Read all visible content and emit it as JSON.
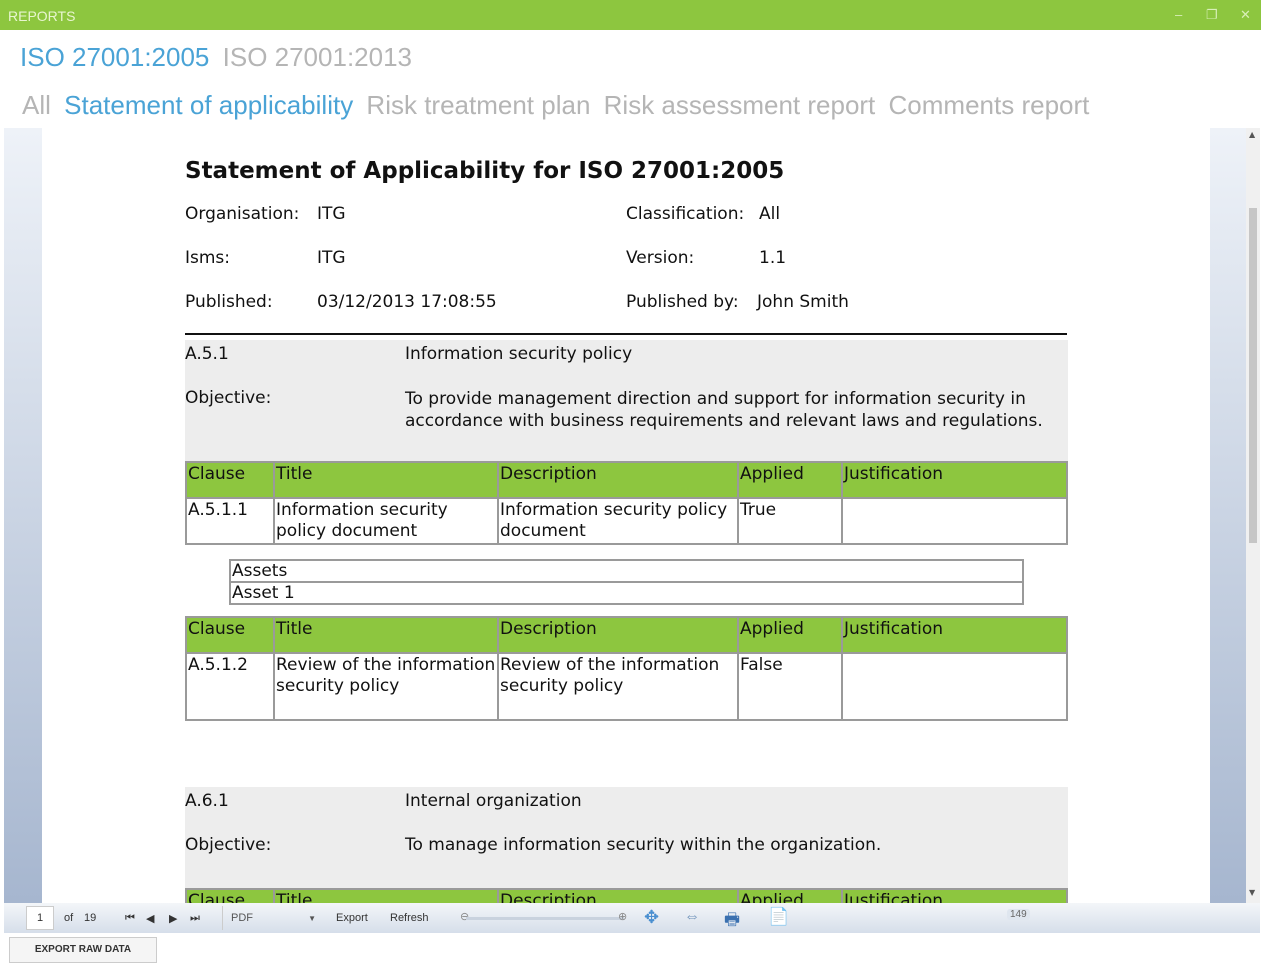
{
  "window": {
    "title": "REPORTS",
    "minimize": "‒",
    "restore": "❐",
    "close": "✕"
  },
  "standards": [
    {
      "label": "ISO 27001:2005",
      "active": true
    },
    {
      "label": "ISO 27001:2013",
      "active": false
    }
  ],
  "report_tabs": [
    {
      "label": "All"
    },
    {
      "label": "Statement of applicability",
      "active": true
    },
    {
      "label": "Risk treatment plan"
    },
    {
      "label": "Risk assessment report"
    },
    {
      "label": "Comments report"
    }
  ],
  "report": {
    "title": "Statement of Applicability for ISO 27001:2005",
    "meta": {
      "organisation_label": "Organisation:",
      "organisation": "ITG",
      "classification_label": "Classification:",
      "classification": "All",
      "isms_label": "Isms:",
      "isms": "ITG",
      "version_label": "Version:",
      "version": "1.1",
      "published_label": "Published:",
      "published": "03/12/2013 17:08:55",
      "published_by_label": "Published by:",
      "published_by": "John Smith"
    },
    "columns": [
      "Clause",
      "Title",
      "Description",
      "Applied",
      "Justification"
    ],
    "sections": [
      {
        "code": "A.5.1",
        "name": "Information security policy",
        "objective_label": "Objective:",
        "objective": "To provide management direction and support for information security in accordance with business requirements and relevant laws and regulations.",
        "controls": [
          {
            "clause": "A.5.1.1",
            "title": "Information security policy document",
            "description": "Information security policy document",
            "applied": "True",
            "justification": "",
            "assets_header": "Assets",
            "assets": [
              "Asset 1"
            ]
          },
          {
            "clause": "A.5.1.2",
            "title": "Review of the information security policy",
            "description": "Review of the information security policy",
            "applied": "False",
            "justification": ""
          }
        ]
      },
      {
        "code": "A.6.1",
        "name": "Internal organization",
        "objective_label": "Objective:",
        "objective": "To manage information security within the organization."
      }
    ]
  },
  "toolbar": {
    "page": "1",
    "of": "of",
    "total_pages": "19",
    "format": "PDF",
    "export": "Export",
    "refresh": "Refresh",
    "zoom": "149"
  },
  "export_raw_label": "EXPORT RAW DATA",
  "colors": {
    "accent": "#8dc63f",
    "active_tab": "#4aa3d6",
    "inactive_tab": "#b5b5b5"
  }
}
